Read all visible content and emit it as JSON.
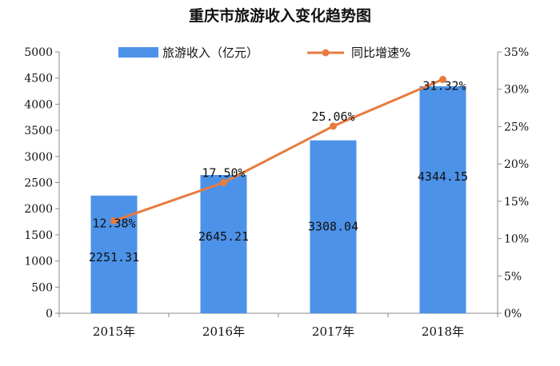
{
  "chart_data": {
    "type": "bar",
    "title": "重庆市旅游收入变化趋势图",
    "categories": [
      "2015年",
      "2016年",
      "2017年",
      "2018年"
    ],
    "series": [
      {
        "name": "旅游收入（亿元）",
        "type": "bar",
        "axis": "left",
        "values": [
          2251.31,
          2645.21,
          3308.04,
          4344.15
        ],
        "labels": [
          "2251.31",
          "2645.21",
          "3308.04",
          "4344.15"
        ],
        "color": "#4C92E8"
      },
      {
        "name": "同比增速%",
        "type": "line",
        "axis": "right",
        "values": [
          12.38,
          17.5,
          25.06,
          31.32
        ],
        "labels": [
          "12.38%",
          "17.50%",
          "25.06%",
          "31.32%"
        ],
        "color": "#E87B3E"
      }
    ],
    "y_left": {
      "min": 0,
      "max": 5000,
      "step": 500,
      "ticks": [
        "0",
        "500",
        "1000",
        "1500",
        "2000",
        "2500",
        "3000",
        "3500",
        "4000",
        "4500",
        "5000"
      ]
    },
    "y_right": {
      "min": 0,
      "max": 35,
      "step": 5,
      "ticks": [
        "0%",
        "5%",
        "10%",
        "15%",
        "20%",
        "25%",
        "30%",
        "35%"
      ]
    },
    "legend_position": "top",
    "grid": false
  }
}
